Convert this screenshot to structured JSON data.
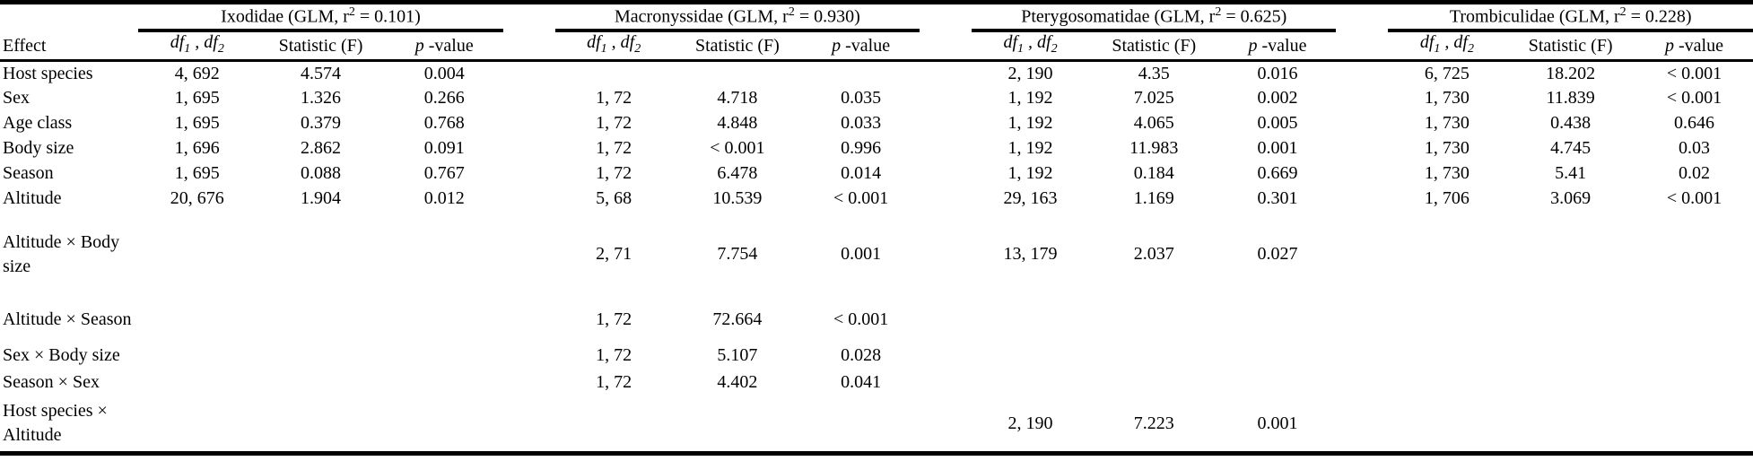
{
  "table": {
    "effect_header": "Effect",
    "groups": [
      {
        "title_pre": "Ixodidae (GLM, r",
        "title_sup": "2",
        "title_post": " = 0.101)"
      },
      {
        "title_pre": "Macronyssidae (GLM, r",
        "title_sup": "2",
        "title_post": " = 0.930)"
      },
      {
        "title_pre": "Pterygosomatidae (GLM, r",
        "title_sup": "2",
        "title_post": " = 0.625)"
      },
      {
        "title_pre": "Trombiculidae (GLM, r",
        "title_sup": "2",
        "title_post": " = 0.228)"
      }
    ],
    "col_headers": {
      "df_a": "df",
      "df_a_sub": "1",
      "df_sep": " , ",
      "df_b": "df",
      "df_b_sub": "2",
      "statistic": "Statistic (F)",
      "p_italic": "p",
      "p_rest": " -value"
    },
    "rows": [
      {
        "effect": "Host species",
        "cells": [
          [
            "4, 692",
            "4.574",
            "0.004"
          ],
          [
            "",
            "",
            ""
          ],
          [
            "2, 190",
            "4.35",
            "0.016"
          ],
          [
            "6, 725",
            "18.202",
            "< 0.001"
          ]
        ]
      },
      {
        "effect": "Sex",
        "cells": [
          [
            "1, 695",
            "1.326",
            "0.266"
          ],
          [
            "1, 72",
            "4.718",
            "0.035"
          ],
          [
            "1, 192",
            "7.025",
            "0.002"
          ],
          [
            "1, 730",
            "11.839",
            "< 0.001"
          ]
        ]
      },
      {
        "effect": "Age class",
        "cells": [
          [
            "1, 695",
            "0.379",
            "0.768"
          ],
          [
            "1, 72",
            "4.848",
            "0.033"
          ],
          [
            "1, 192",
            "4.065",
            "0.005"
          ],
          [
            "1, 730",
            "0.438",
            "0.646"
          ]
        ]
      },
      {
        "effect": "Body size",
        "cells": [
          [
            "1, 696",
            "2.862",
            "0.091"
          ],
          [
            "1, 72",
            "< 0.001",
            "0.996"
          ],
          [
            "1, 192",
            "11.983",
            "0.001"
          ],
          [
            "1, 730",
            "4.745",
            "0.03"
          ]
        ]
      },
      {
        "effect": "Season",
        "cells": [
          [
            "1, 695",
            "0.088",
            "0.767"
          ],
          [
            "1, 72",
            "6.478",
            "0.014"
          ],
          [
            "1, 192",
            "0.184",
            "0.669"
          ],
          [
            "1, 730",
            "5.41",
            "0.02"
          ]
        ]
      },
      {
        "effect": "Altitude",
        "cells": [
          [
            "20, 676",
            "1.904",
            "0.012"
          ],
          [
            "5, 68",
            "10.539",
            "< 0.001"
          ],
          [
            "29, 163",
            "1.169",
            "0.301"
          ],
          [
            "1, 706",
            "3.069",
            "< 0.001"
          ]
        ]
      },
      {
        "effect": "Altitude × Body\nsize",
        "cells": [
          [
            "",
            "",
            ""
          ],
          [
            "2, 71",
            "7.754",
            "0.001"
          ],
          [
            "13, 179",
            "2.037",
            "0.027"
          ],
          [
            "",
            "",
            ""
          ]
        ]
      },
      {
        "effect": "Altitude × Season",
        "cells": [
          [
            "",
            "",
            ""
          ],
          [
            "1, 72",
            "72.664",
            "< 0.001"
          ],
          [
            "",
            "",
            ""
          ],
          [
            "",
            "",
            ""
          ]
        ]
      },
      {
        "effect": "Sex × Body size",
        "cells": [
          [
            "",
            "",
            ""
          ],
          [
            "1, 72",
            "5.107",
            "0.028"
          ],
          [
            "",
            "",
            ""
          ],
          [
            "",
            "",
            ""
          ]
        ]
      },
      {
        "effect": "Season × Sex",
        "cells": [
          [
            "",
            "",
            ""
          ],
          [
            "1, 72",
            "4.402",
            "0.041"
          ],
          [
            "",
            "",
            ""
          ],
          [
            "",
            "",
            ""
          ]
        ]
      },
      {
        "effect": "Host species ×\nAltitude",
        "cells": [
          [
            "",
            "",
            ""
          ],
          [
            "",
            "",
            ""
          ],
          [
            "2, 190",
            "7.223",
            "0.001"
          ],
          [
            "",
            "",
            ""
          ]
        ]
      }
    ]
  }
}
